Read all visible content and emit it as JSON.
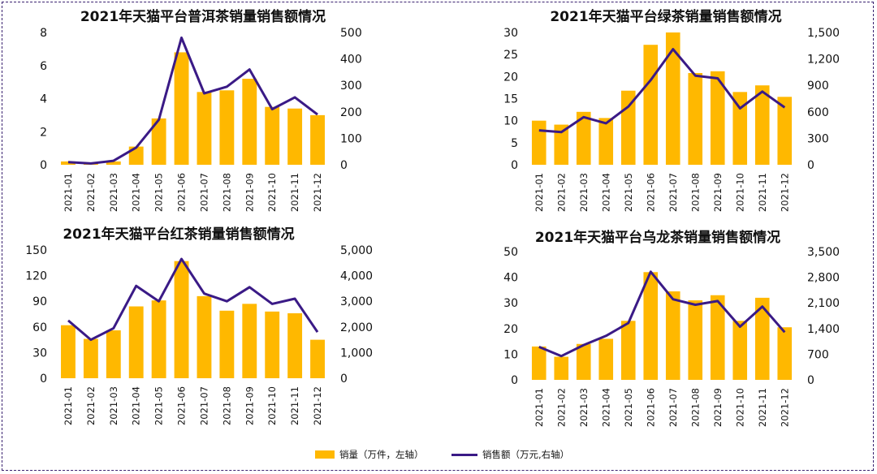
{
  "colors": {
    "bar": "#FFB800",
    "line": "#3A1A86",
    "frame": "#3a2270"
  },
  "legend": {
    "bar_label": "销量（万件，左轴）",
    "line_label": "销售额（万元,右轴）"
  },
  "chart_data": [
    {
      "type": "bar+line",
      "title": "2021年天猫平台普洱茶销量销售额情况",
      "categories": [
        "2021-01",
        "2021-02",
        "2021-03",
        "2021-04",
        "2021-05",
        "2021-06",
        "2021-07",
        "2021-08",
        "2021-09",
        "2021-10",
        "2021-11",
        "2021-12"
      ],
      "left_axis": {
        "min": 0,
        "max": 8,
        "ticks": [
          "0",
          "2",
          "4",
          "6",
          "8"
        ]
      },
      "right_axis": {
        "min": 0,
        "max": 500,
        "ticks": [
          "0",
          "100",
          "200",
          "300",
          "400",
          "500"
        ]
      },
      "series": [
        {
          "name": "销量（万件，左轴）",
          "type": "bar",
          "axis": "left",
          "values": [
            0.2,
            0.1,
            0.2,
            1.1,
            2.8,
            6.8,
            4.4,
            4.5,
            5.2,
            3.5,
            3.4,
            3.0
          ]
        },
        {
          "name": "销售额（万元,右轴）",
          "type": "line",
          "axis": "right",
          "values": [
            10,
            5,
            15,
            65,
            170,
            480,
            270,
            295,
            360,
            210,
            255,
            190
          ]
        }
      ]
    },
    {
      "type": "bar+line",
      "title": "2021年天猫平台绿茶销量销售额情况",
      "categories": [
        "2021-01",
        "2021-02",
        "2021-03",
        "2021-04",
        "2021-05",
        "2021-06",
        "2021-07",
        "2021-08",
        "2021-09",
        "2021-10",
        "2021-11",
        "2021-12"
      ],
      "left_axis": {
        "min": 0,
        "max": 30,
        "ticks": [
          "0",
          "5",
          "10",
          "15",
          "20",
          "25",
          "30"
        ]
      },
      "right_axis": {
        "min": 0,
        "max": 1500,
        "ticks": [
          "0",
          "300",
          "600",
          "900",
          "1,200",
          "1,500"
        ]
      },
      "series": [
        {
          "name": "销量（万件，左轴）",
          "type": "bar",
          "axis": "left",
          "values": [
            10.0,
            9.1,
            12.0,
            10.6,
            16.8,
            27.2,
            30.0,
            20.8,
            21.2,
            16.5,
            18.0,
            15.4
          ]
        },
        {
          "name": "销售额（万元,右轴）",
          "type": "line",
          "axis": "right",
          "values": [
            390,
            370,
            540,
            470,
            660,
            960,
            1310,
            1010,
            980,
            640,
            830,
            650
          ]
        }
      ]
    },
    {
      "type": "bar+line",
      "title": "2021年天猫平台红茶销量销售额情况",
      "categories": [
        "2021-01",
        "2021-02",
        "2021-03",
        "2021-04",
        "2021-05",
        "2021-06",
        "2021-07",
        "2021-08",
        "2021-09",
        "2021-10",
        "2021-11",
        "2021-12"
      ],
      "left_axis": {
        "min": 0,
        "max": 150,
        "ticks": [
          "0",
          "30",
          "60",
          "90",
          "120",
          "150"
        ]
      },
      "right_axis": {
        "min": 0,
        "max": 5000,
        "ticks": [
          "0",
          "1,000",
          "2,000",
          "3,000",
          "4,000",
          "5,000"
        ]
      },
      "series": [
        {
          "name": "销量（万件，左轴）",
          "type": "bar",
          "axis": "left",
          "values": [
            62,
            46,
            56,
            84,
            91,
            137,
            96,
            79,
            87,
            78,
            76,
            45
          ]
        },
        {
          "name": "销售额（万元,右轴）",
          "type": "line",
          "axis": "right",
          "values": [
            2250,
            1500,
            1950,
            3600,
            3000,
            4650,
            3300,
            3000,
            3550,
            2900,
            3100,
            1800
          ]
        }
      ]
    },
    {
      "type": "bar+line",
      "title": "2021年天猫平台乌龙茶销量销售额情况",
      "categories": [
        "2021-01",
        "2021-02",
        "2021-03",
        "2021-04",
        "2021-05",
        "2021-06",
        "2021-07",
        "2021-08",
        "2021-09",
        "2021-10",
        "2021-11",
        "2021-12"
      ],
      "left_axis": {
        "min": 0,
        "max": 50,
        "ticks": [
          "0",
          "10",
          "20",
          "30",
          "40",
          "50"
        ]
      },
      "right_axis": {
        "min": 0,
        "max": 3500,
        "ticks": [
          "0",
          "700",
          "1,400",
          "2,100",
          "2,800",
          "3,500"
        ]
      },
      "series": [
        {
          "name": "销量（万件，左轴）",
          "type": "bar",
          "axis": "left",
          "values": [
            13,
            9,
            14,
            16,
            23,
            42,
            34.5,
            31,
            33,
            23,
            32,
            20.5
          ]
        },
        {
          "name": "销售额（万元,右轴）",
          "type": "line",
          "axis": "right",
          "values": [
            900,
            650,
            950,
            1200,
            1550,
            2950,
            2200,
            2050,
            2150,
            1450,
            2000,
            1300
          ]
        }
      ]
    }
  ]
}
